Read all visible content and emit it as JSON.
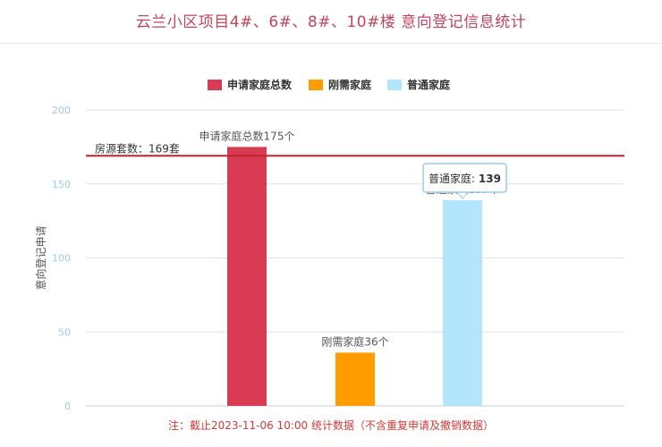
{
  "title": "云兰小区项目4#、6#、8#、10#楼 意向登记信息统计",
  "footnote": "注：截止2023-11-06 10:00 统计数据（不含重复申请及撤销数据）",
  "tooltip": {
    "label": "普通家庭:",
    "value": "139"
  },
  "colors": {
    "total": "#d93b55",
    "rigid": "#ff9d00",
    "ordinary": "#b3e5fc",
    "refline": "#c0252d",
    "axis_tick": "#9ecae8",
    "grid": "#dfe3e8"
  },
  "chart_data": {
    "type": "bar",
    "categories": [
      "申请家庭总数",
      "刚需家庭",
      "普通家庭"
    ],
    "series": [
      {
        "name": "申请家庭总数",
        "values": [
          175,
          null,
          null
        ],
        "color": "#d93b55",
        "data_label": "申请家庭总数175个"
      },
      {
        "name": "刚需家庭",
        "values": [
          null,
          36,
          null
        ],
        "color": "#ff9d00",
        "data_label": "刚需家庭36个"
      },
      {
        "name": "普通家庭",
        "values": [
          null,
          null,
          139
        ],
        "color": "#b3e5fc",
        "data_label": "普通家庭139个"
      }
    ],
    "ylabel": "意向登记申请",
    "ylim": [
      0,
      200
    ],
    "yticks": [
      0,
      50,
      100,
      150,
      200
    ],
    "reference_line": {
      "value": 169,
      "label": "房源套数：169套"
    },
    "grid": true,
    "legend_position": "top-center"
  }
}
